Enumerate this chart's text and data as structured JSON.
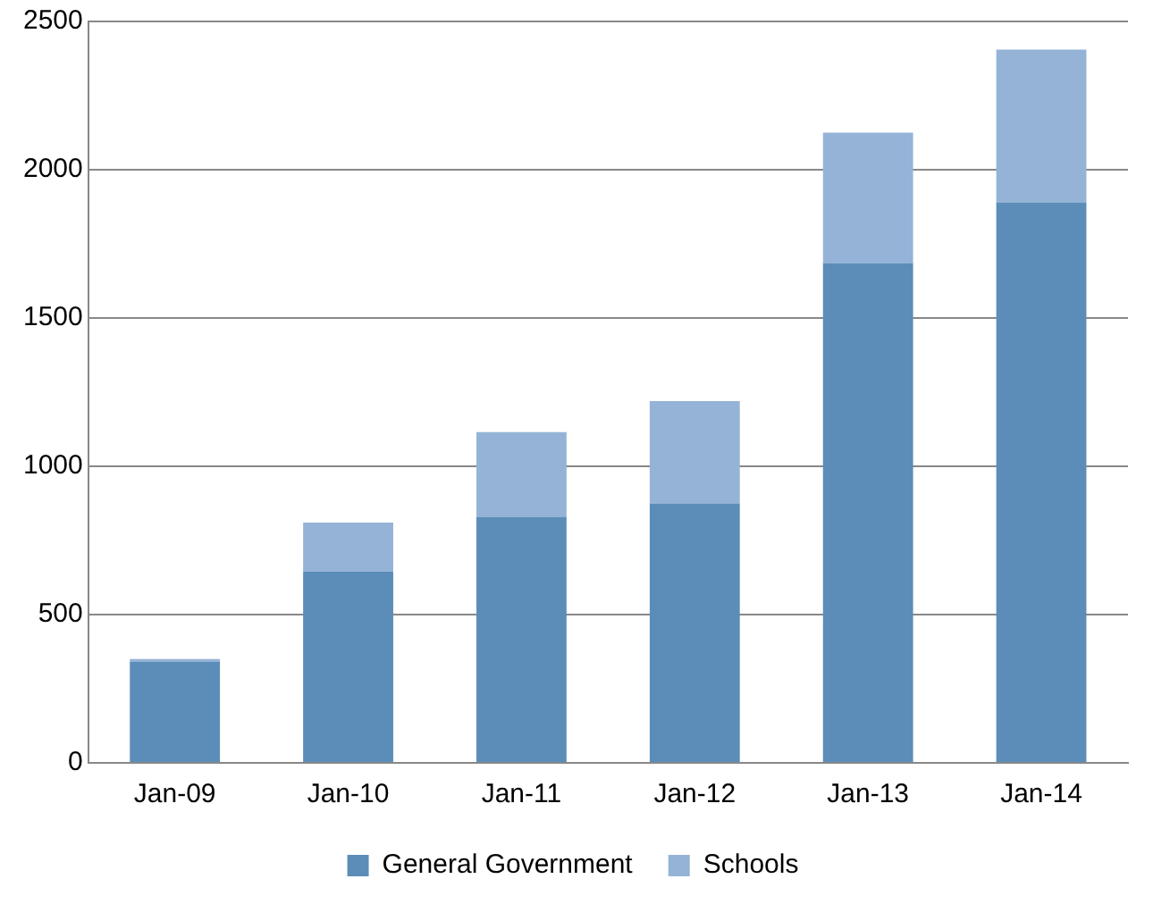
{
  "chart_data": {
    "type": "bar",
    "stacked": true,
    "categories": [
      "Jan-09",
      "Jan-10",
      "Jan-11",
      "Jan-12",
      "Jan-13",
      "Jan-14"
    ],
    "series": [
      {
        "name": "General Government",
        "color": "#5b8db8",
        "values": [
          340,
          645,
          830,
          875,
          1685,
          1890
        ]
      },
      {
        "name": "Schools",
        "color": "#95b3d7",
        "values": [
          10,
          165,
          285,
          345,
          440,
          515
        ]
      }
    ],
    "ylim": [
      0,
      2500
    ],
    "yticks": [
      0,
      500,
      1000,
      1500,
      2000,
      2500
    ],
    "grid": "y",
    "legend": "bottom"
  }
}
